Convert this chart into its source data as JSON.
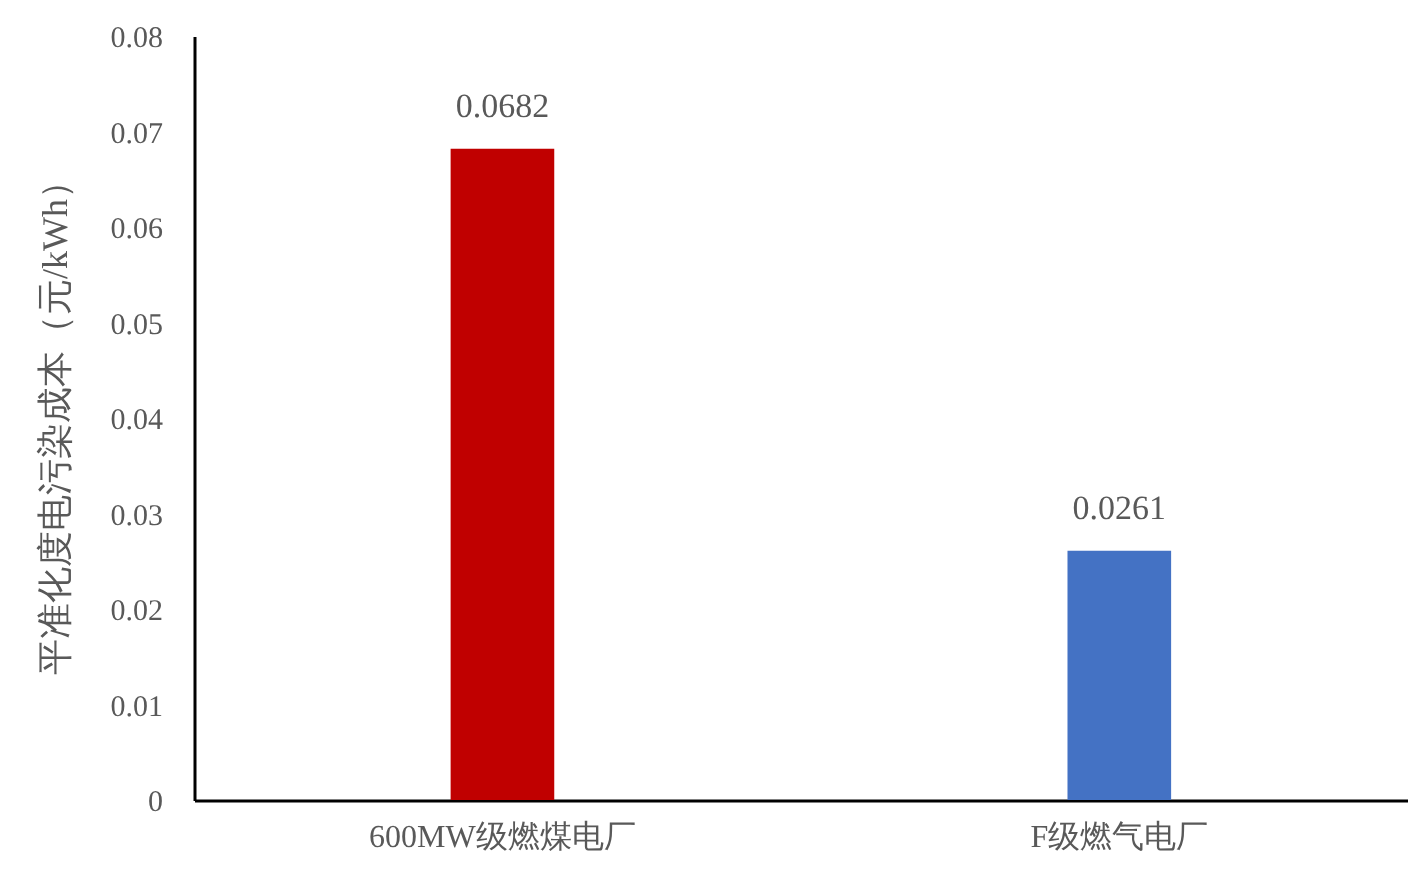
{
  "chart_data": {
    "type": "bar",
    "categories": [
      "600MW级燃煤电厂",
      "F级燃气电厂"
    ],
    "values": [
      0.0682,
      0.0261
    ],
    "colors": [
      "#c00000",
      "#4472c4"
    ],
    "ylabel": "平准化度电污染成本（元/kWh）",
    "ylim": [
      0,
      0.08
    ],
    "yticks": [
      0,
      0.01,
      0.02,
      0.03,
      0.04,
      0.05,
      0.06,
      0.07,
      0.08
    ],
    "grid": false,
    "data_labels": true
  }
}
